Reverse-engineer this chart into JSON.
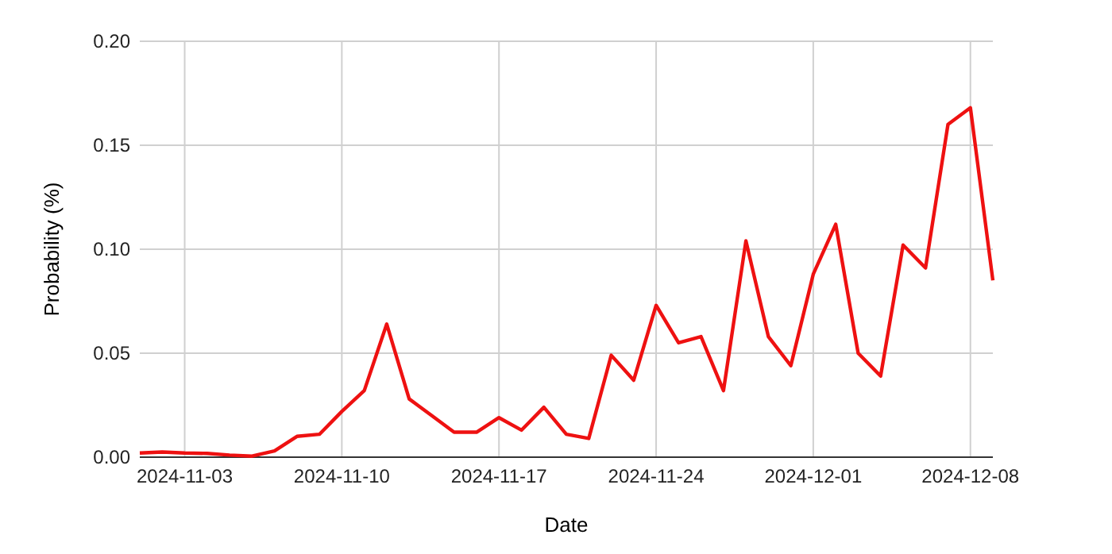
{
  "chart_data": {
    "type": "line",
    "xlabel": "Date",
    "ylabel": "Probability (%)",
    "x": [
      "2024-11-01",
      "2024-11-02",
      "2024-11-03",
      "2024-11-04",
      "2024-11-05",
      "2024-11-06",
      "2024-11-07",
      "2024-11-08",
      "2024-11-09",
      "2024-11-10",
      "2024-11-11",
      "2024-11-12",
      "2024-11-13",
      "2024-11-14",
      "2024-11-15",
      "2024-11-16",
      "2024-11-17",
      "2024-11-18",
      "2024-11-19",
      "2024-11-20",
      "2024-11-21",
      "2024-11-22",
      "2024-11-23",
      "2024-11-24",
      "2024-11-25",
      "2024-11-26",
      "2024-11-27",
      "2024-11-28",
      "2024-11-29",
      "2024-11-30",
      "2024-12-01",
      "2024-12-02",
      "2024-12-03",
      "2024-12-04",
      "2024-12-05",
      "2024-12-06",
      "2024-12-07",
      "2024-12-08",
      "2024-12-09"
    ],
    "series": [
      {
        "color": "#ee1111",
        "values": [
          0.002,
          0.0025,
          0.002,
          0.0018,
          0.001,
          0.0005,
          0.003,
          0.01,
          0.011,
          0.022,
          0.032,
          0.064,
          0.028,
          0.02,
          0.012,
          0.012,
          0.019,
          0.013,
          0.024,
          0.011,
          0.009,
          0.049,
          0.037,
          0.073,
          0.055,
          0.058,
          0.032,
          0.104,
          0.058,
          0.044,
          0.088,
          0.112,
          0.05,
          0.039,
          0.102,
          0.091,
          0.16,
          0.168,
          0.085
        ]
      }
    ],
    "xlim": [
      "2024-11-01",
      "2024-12-09"
    ],
    "xticks": [
      {
        "value": "2024-11-03",
        "label": "2024-11-03"
      },
      {
        "value": "2024-11-10",
        "label": "2024-11-10"
      },
      {
        "value": "2024-11-17",
        "label": "2024-11-17"
      },
      {
        "value": "2024-11-24",
        "label": "2024-11-24"
      },
      {
        "value": "2024-12-01",
        "label": "2024-12-01"
      },
      {
        "value": "2024-12-08",
        "label": "2024-12-08"
      }
    ],
    "ylim": [
      0,
      0.2
    ],
    "yticks": [
      {
        "value": 0,
        "label": "0.00"
      },
      {
        "value": 0.05,
        "label": "0.05"
      },
      {
        "value": 0.1,
        "label": "0.10"
      },
      {
        "value": 0.15,
        "label": "0.15"
      },
      {
        "value": 0.2,
        "label": "0.20"
      }
    ],
    "grid": true,
    "marker": "none",
    "line_style": "solid"
  }
}
